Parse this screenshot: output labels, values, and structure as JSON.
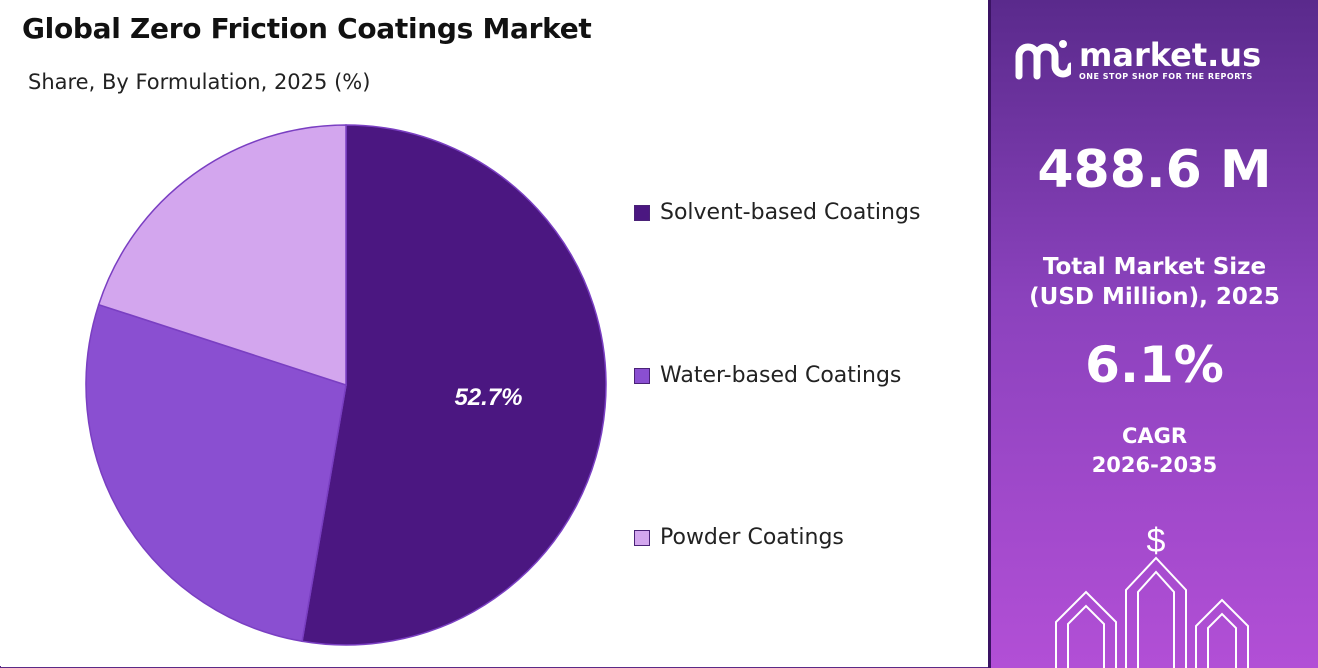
{
  "header": {
    "title": "Global Zero Friction Coatings Market",
    "subtitle": "Share, By Formulation, 2025 (%)"
  },
  "chart_data": {
    "type": "pie",
    "title": "Global Zero Friction Coatings Market",
    "subtitle": "Share, By Formulation, 2025 (%)",
    "slices": [
      {
        "name": "Solvent-based Coatings",
        "value": 52.7,
        "label": "52.7%",
        "color": "#4b1781"
      },
      {
        "name": "Water-based Coatings",
        "value": 27.3,
        "label": "",
        "color": "#8a4fd1"
      },
      {
        "name": "Powder Coatings",
        "value": 20.0,
        "label": "",
        "color": "#d3a6ee"
      }
    ],
    "legend_position": "right"
  },
  "sidebar": {
    "brand": "market.us",
    "tagline": "ONE STOP SHOP FOR THE REPORTS",
    "market_size": "488.6 M",
    "market_size_label_1": "Total Market Size",
    "market_size_label_2": "(USD Million), 2025",
    "cagr": "6.1%",
    "cagr_label_1": "CAGR",
    "cagr_label_2": "2026-2035",
    "dollar_symbol": "$",
    "icons": [
      "market-us-logo-icon",
      "growth-arrows-icon"
    ]
  },
  "colors": {
    "slice_1": "#4b1781",
    "slice_2": "#8a4fd1",
    "slice_3": "#d3a6ee",
    "panel_top": "#5a2a8c",
    "panel_bottom": "#b24fd6"
  }
}
